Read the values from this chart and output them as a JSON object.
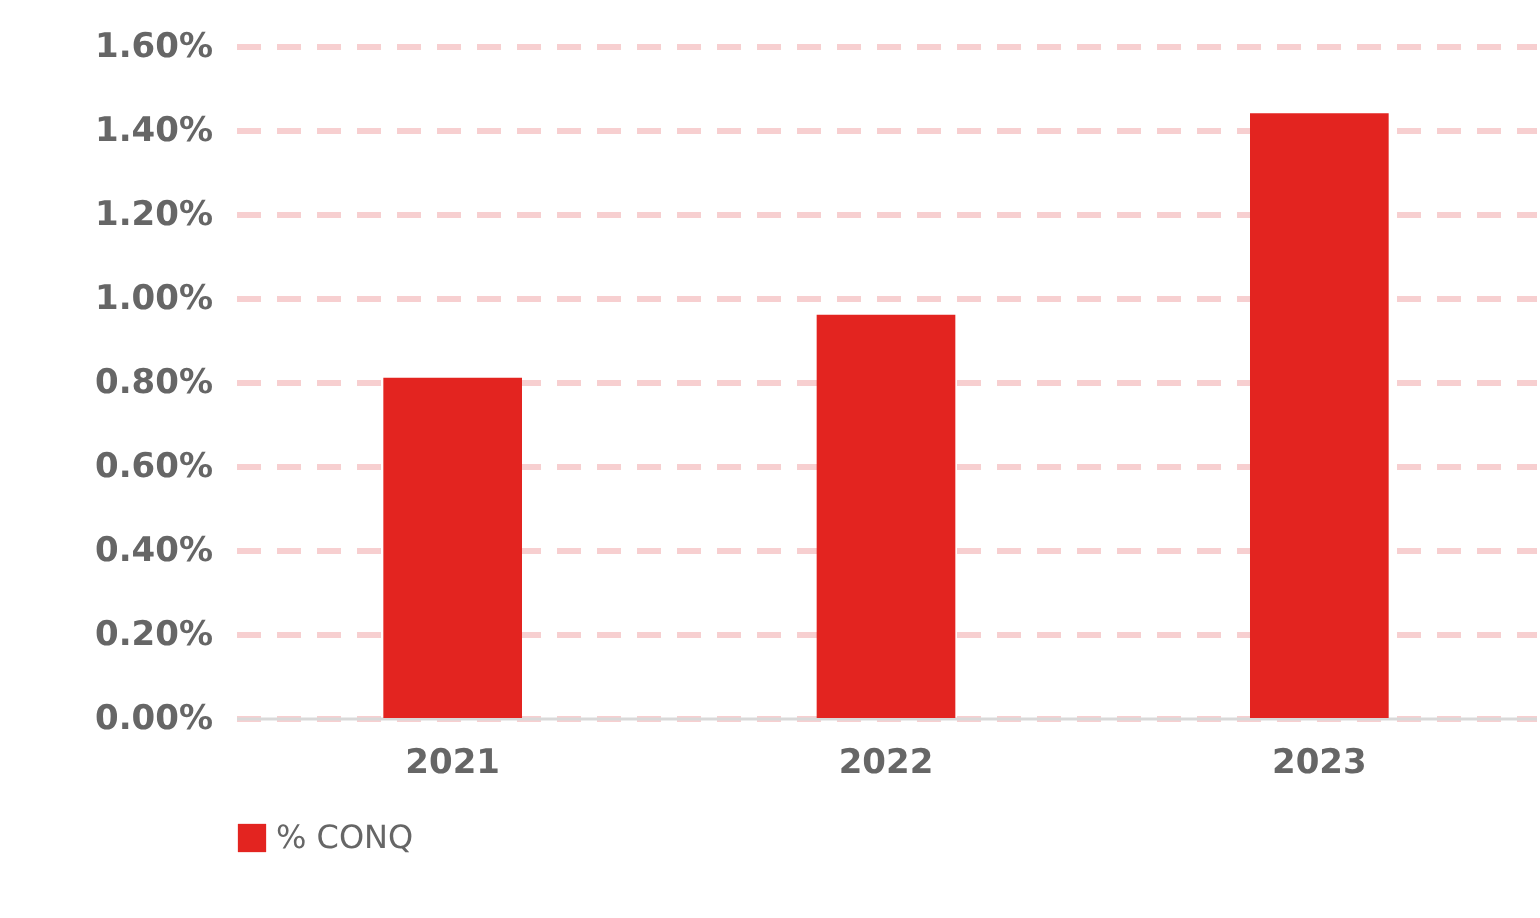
{
  "chart_data": {
    "type": "bar",
    "categories": [
      "2021",
      "2022",
      "2023"
    ],
    "series": [
      {
        "name": "% CONQ",
        "color": "#e32420",
        "values": [
          0.81,
          0.96,
          1.44
        ]
      }
    ],
    "ylim": [
      0,
      1.6
    ],
    "yticks": [
      {
        "value": 0,
        "label": "0.00%"
      },
      {
        "value": 0.2,
        "label": "0.20%"
      },
      {
        "value": 0.4,
        "label": "0.40%"
      },
      {
        "value": 0.6,
        "label": "0.60%"
      },
      {
        "value": 0.8,
        "label": "0.80%"
      },
      {
        "value": 1,
        "label": "1.00%"
      },
      {
        "value": 1.2,
        "label": "1.20%"
      },
      {
        "value": 1.4,
        "label": "1.40%"
      },
      {
        "value": 1.6,
        "label": "1.60%"
      }
    ],
    "grid": "y",
    "legend": "bottom"
  }
}
